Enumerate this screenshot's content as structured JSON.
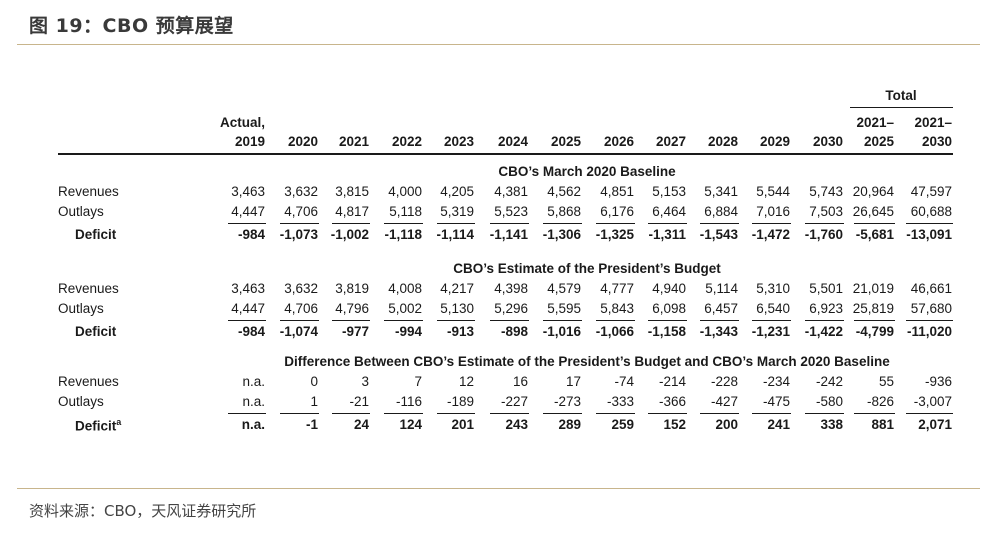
{
  "title": "图 19：CBO 预算展望",
  "source": "资料来源：CBO，天风证券研究所",
  "table": {
    "total_header": "Total",
    "columns": [
      {
        "top": "Actual,",
        "bottom": "2019"
      },
      {
        "top": "",
        "bottom": "2020"
      },
      {
        "top": "",
        "bottom": "2021"
      },
      {
        "top": "",
        "bottom": "2022"
      },
      {
        "top": "",
        "bottom": "2023"
      },
      {
        "top": "",
        "bottom": "2024"
      },
      {
        "top": "",
        "bottom": "2025"
      },
      {
        "top": "",
        "bottom": "2026"
      },
      {
        "top": "",
        "bottom": "2027"
      },
      {
        "top": "",
        "bottom": "2028"
      },
      {
        "top": "",
        "bottom": "2029"
      },
      {
        "top": "",
        "bottom": "2030"
      },
      {
        "top": "2021–",
        "bottom": "2025"
      },
      {
        "top": "2021–",
        "bottom": "2030"
      }
    ],
    "sections": [
      {
        "heading": "CBO’s March 2020 Baseline",
        "rows": [
          {
            "label": "Revenues",
            "values": [
              "3,463",
              "3,632",
              "3,815",
              "4,000",
              "4,205",
              "4,381",
              "4,562",
              "4,851",
              "5,153",
              "5,341",
              "5,544",
              "5,743",
              "20,964",
              "47,597"
            ]
          },
          {
            "label": "Outlays",
            "values": [
              "4,447",
              "4,706",
              "4,817",
              "5,118",
              "5,319",
              "5,523",
              "5,868",
              "6,176",
              "6,464",
              "6,884",
              "7,016",
              "7,503",
              "26,645",
              "60,688"
            ]
          },
          {
            "label": "Deficit",
            "values": [
              "-984",
              "-1,073",
              "-1,002",
              "-1,118",
              "-1,114",
              "-1,141",
              "-1,306",
              "-1,325",
              "-1,311",
              "-1,543",
              "-1,472",
              "-1,760",
              "-5,681",
              "-13,091"
            ]
          }
        ]
      },
      {
        "heading": "CBO’s Estimate of the President’s Budget",
        "rows": [
          {
            "label": "Revenues",
            "values": [
              "3,463",
              "3,632",
              "3,819",
              "4,008",
              "4,217",
              "4,398",
              "4,579",
              "4,777",
              "4,940",
              "5,114",
              "5,310",
              "5,501",
              "21,019",
              "46,661"
            ]
          },
          {
            "label": "Outlays",
            "values": [
              "4,447",
              "4,706",
              "4,796",
              "5,002",
              "5,130",
              "5,296",
              "5,595",
              "5,843",
              "6,098",
              "6,457",
              "6,540",
              "6,923",
              "25,819",
              "57,680"
            ]
          },
          {
            "label": "Deficit",
            "values": [
              "-984",
              "-1,074",
              "-977",
              "-994",
              "-913",
              "-898",
              "-1,016",
              "-1,066",
              "-1,158",
              "-1,343",
              "-1,231",
              "-1,422",
              "-4,799",
              "-11,020"
            ]
          }
        ]
      },
      {
        "heading": "Difference Between CBO’s Estimate of the President’s Budget and CBO’s March 2020 Baseline",
        "rows": [
          {
            "label": "Revenues",
            "values": [
              "n.a.",
              "0",
              "3",
              "7",
              "12",
              "16",
              "17",
              "-74",
              "-214",
              "-228",
              "-234",
              "-242",
              "55",
              "-936"
            ]
          },
          {
            "label": "Outlays",
            "values": [
              "n.a.",
              "1",
              "-21",
              "-116",
              "-189",
              "-227",
              "-273",
              "-333",
              "-366",
              "-427",
              "-475",
              "-580",
              "-826",
              "-3,007"
            ]
          },
          {
            "label": "Deficit",
            "label_sup": "a",
            "values": [
              "n.a.",
              "-1",
              "24",
              "124",
              "201",
              "243",
              "289",
              "259",
              "152",
              "200",
              "241",
              "338",
              "881",
              "2,071"
            ]
          }
        ]
      }
    ]
  }
}
